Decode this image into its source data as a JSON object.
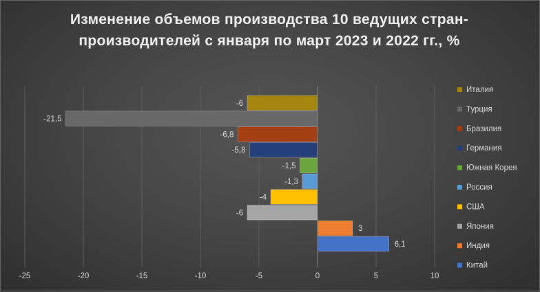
{
  "chart_data": {
    "type": "bar",
    "orientation": "horizontal",
    "title": "Изменение объемов производства 10 ведущих стран-производителей с января по март 2023 и 2022 гг., %",
    "xlim": [
      -25,
      10
    ],
    "xticks": [
      -25,
      -20,
      -15,
      -10,
      -5,
      0,
      5,
      10
    ],
    "grid": "vertical",
    "legend_position": "right",
    "series": [
      {
        "name": "Италия",
        "value": -6,
        "label": "-6",
        "color": "#a4860f"
      },
      {
        "name": "Турция",
        "value": -21.5,
        "label": "-21,5",
        "color": "#686868"
      },
      {
        "name": "Бразилия",
        "value": -6.8,
        "label": "-6,8",
        "color": "#a33f12"
      },
      {
        "name": "Германия",
        "value": -5.8,
        "label": "-5,8",
        "color": "#253f7a"
      },
      {
        "name": "Южная Корея",
        "value": -1.5,
        "label": "-1,5",
        "color": "#6aa53d"
      },
      {
        "name": "Россия",
        "value": -1.3,
        "label": "-1,3",
        "color": "#5b9bd5"
      },
      {
        "name": "США",
        "value": -4,
        "label": "-4",
        "color": "#ffc000"
      },
      {
        "name": "Япония",
        "value": -6,
        "label": "-6",
        "color": "#a5a5a5"
      },
      {
        "name": "Индия",
        "value": 3,
        "label": "3",
        "color": "#ed7d31"
      },
      {
        "name": "Китай",
        "value": 6.1,
        "label": "6,1",
        "color": "#4472c4"
      }
    ]
  }
}
